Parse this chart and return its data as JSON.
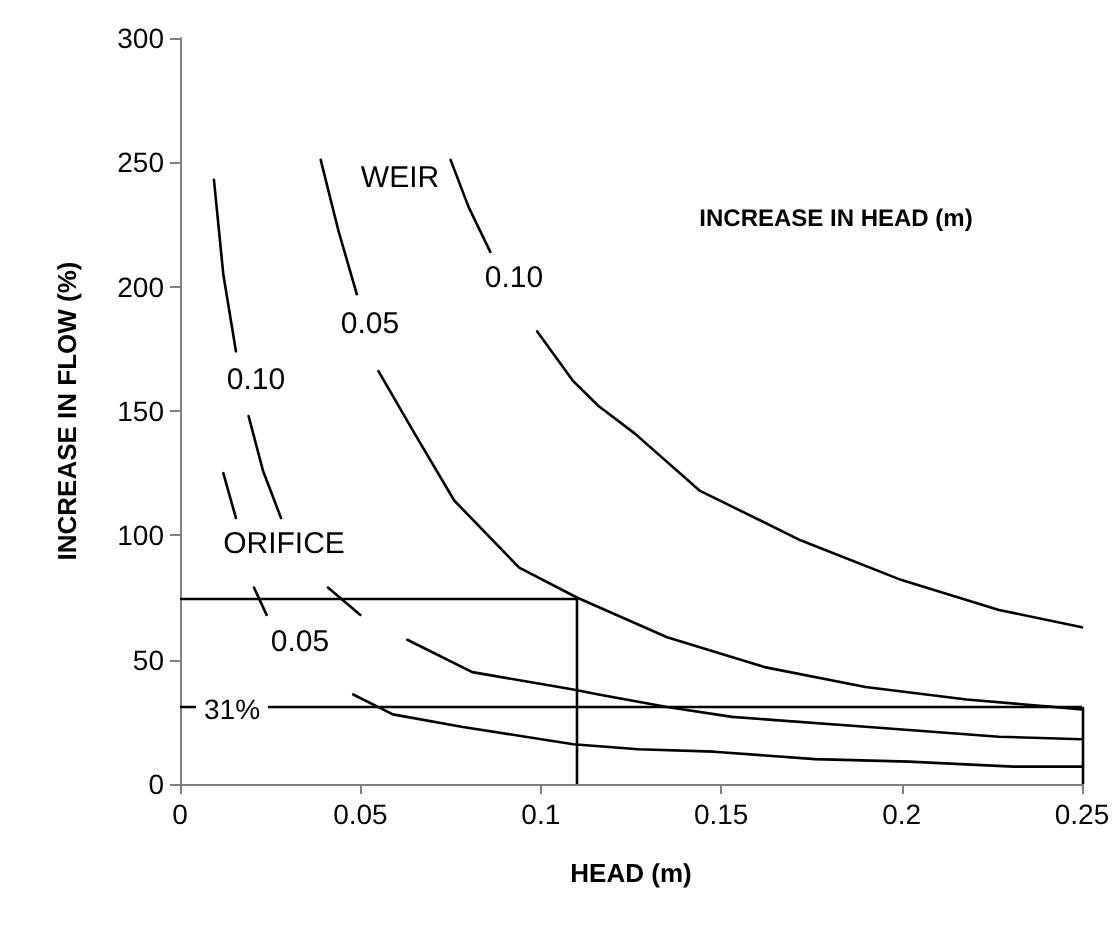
{
  "chart_data": {
    "type": "line",
    "xlabel": "HEAD (m)",
    "ylabel": "INCREASE IN FLOW (%)",
    "xlim": [
      0,
      0.25
    ],
    "xticks": [
      0,
      0.05,
      0.1,
      0.15,
      0.2,
      0.25
    ],
    "ylim": [
      0,
      300
    ],
    "yticks": [
      0,
      50,
      100,
      150,
      200,
      250,
      300
    ],
    "grid": false,
    "marker": "none",
    "line_style": "solid",
    "series": [
      {
        "color": "#000000",
        "x": [
          0.075,
          0.08,
          0.086,
          0.092,
          0.099,
          0.109,
          0.116,
          0.126,
          0.144,
          0.172,
          0.2,
          0.227,
          0.25
        ],
        "values": [
          251,
          232,
          214,
          null,
          182,
          162,
          152,
          141,
          118,
          98,
          82,
          70,
          63
        ]
      },
      {
        "color": "#000000",
        "x": [
          0.039,
          0.044,
          0.049,
          0.052,
          0.055,
          0.065,
          0.076,
          0.094,
          0.11,
          0.135,
          0.162,
          0.19,
          0.218,
          0.25
        ],
        "values": [
          251,
          222,
          197,
          null,
          166,
          141,
          114,
          87,
          75,
          59,
          47,
          39,
          34,
          30
        ]
      },
      {
        "color": "#000000",
        "x": [
          0.0094,
          0.012,
          0.0155,
          0.017,
          0.019,
          0.023,
          0.028,
          0.035,
          0.041,
          0.05,
          0.056,
          0.063,
          0.081,
          0.109,
          0.116,
          0.135,
          0.153,
          0.19,
          0.227,
          0.25
        ],
        "values": [
          243,
          205,
          174,
          null,
          148,
          126,
          107,
          null,
          79,
          68,
          null,
          58,
          45,
          38,
          36,
          31,
          27,
          23,
          19,
          18
        ]
      },
      {
        "color": "#000000",
        "x": [
          0.012,
          0.0155,
          0.018,
          0.0205,
          0.024,
          0.035,
          0.048,
          0.059,
          0.078,
          0.109,
          0.127,
          0.148,
          0.176,
          0.202,
          0.231,
          0.25
        ],
        "values": [
          125,
          107,
          null,
          79,
          68,
          null,
          36,
          28,
          23,
          16,
          14,
          13,
          10,
          9,
          7,
          7
        ]
      }
    ],
    "ref_lines": [
      {
        "axis": "y",
        "value": 75,
        "label": null
      },
      {
        "axis": "x",
        "value": 0.11,
        "label": null
      },
      {
        "axis": "y",
        "value": 31,
        "label": "31%"
      },
      {
        "axis": "x",
        "value": 0.25,
        "label": null
      }
    ],
    "annotations": [
      "WEIR",
      "0.10",
      "0.05",
      "0.10",
      "ORIFICE",
      "0.05",
      "INCREASE IN HEAD (m)"
    ]
  }
}
